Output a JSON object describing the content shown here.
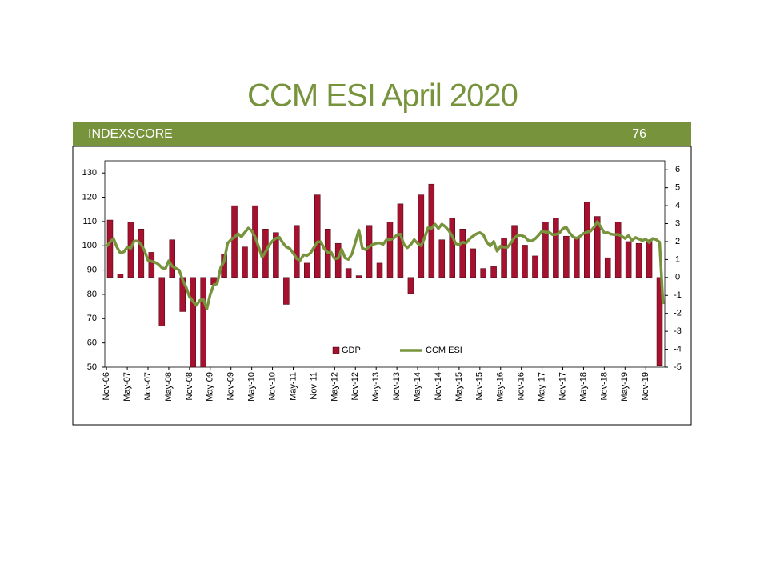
{
  "title": "CCM ESI April 2020",
  "banner": {
    "label": "INDEXSCORE",
    "score": 76
  },
  "chart_data": {
    "type": "combo",
    "categories": [
      "Nov-06",
      null,
      null,
      null,
      null,
      null,
      "May-07",
      null,
      null,
      null,
      null,
      null,
      "Nov-07",
      null,
      null,
      null,
      null,
      null,
      "May-08",
      null,
      null,
      null,
      null,
      null,
      "Nov-08",
      null,
      null,
      null,
      null,
      null,
      "May-09",
      null,
      null,
      null,
      null,
      null,
      "Nov-09",
      null,
      null,
      null,
      null,
      null,
      "May-10",
      null,
      null,
      null,
      null,
      null,
      "Nov-10",
      null,
      null,
      null,
      null,
      null,
      "May-11",
      null,
      null,
      null,
      null,
      null,
      "Nov-11",
      null,
      null,
      null,
      null,
      null,
      "May-12",
      null,
      null,
      null,
      null,
      null,
      "Nov-12",
      null,
      null,
      null,
      null,
      null,
      "May-13",
      null,
      null,
      null,
      null,
      null,
      "Nov-13",
      null,
      null,
      null,
      null,
      null,
      "May-14",
      null,
      null,
      null,
      null,
      null,
      "Nov-14",
      null,
      null,
      null,
      null,
      null,
      "May-15",
      null,
      null,
      null,
      null,
      null,
      "Nov-15",
      null,
      null,
      null,
      null,
      null,
      "May-16",
      null,
      null,
      null,
      null,
      null,
      "Nov-16",
      null,
      null,
      null,
      null,
      null,
      "May-17",
      null,
      null,
      null,
      null,
      null,
      "Nov-17",
      null,
      null,
      null,
      null,
      null,
      "May-18",
      null,
      null,
      null,
      null,
      null,
      "Nov-18",
      null,
      null,
      null,
      null,
      null,
      "May-19",
      null,
      null,
      null,
      null,
      null,
      "Nov-19",
      null,
      null,
      null,
      null,
      null
    ],
    "series": [
      {
        "name": "GDP",
        "type": "bar",
        "axis": "y2",
        "color": "#a5112e",
        "values": [
          null,
          3.2,
          null,
          null,
          0.2,
          null,
          null,
          3.1,
          null,
          null,
          2.7,
          null,
          null,
          1.4,
          null,
          null,
          -2.7,
          null,
          null,
          2.1,
          null,
          null,
          -1.9,
          null,
          null,
          -5,
          null,
          null,
          -5,
          null,
          null,
          -0.4,
          null,
          null,
          1.3,
          null,
          null,
          4.0,
          null,
          null,
          1.7,
          null,
          null,
          4.0,
          null,
          null,
          2.7,
          null,
          null,
          2.5,
          null,
          null,
          -1.5,
          null,
          null,
          2.9,
          null,
          null,
          0.8,
          null,
          null,
          4.6,
          null,
          null,
          2.7,
          null,
          null,
          1.9,
          null,
          null,
          0.5,
          null,
          null,
          0.1,
          null,
          null,
          2.9,
          null,
          null,
          0.8,
          null,
          null,
          3.1,
          null,
          null,
          4.1,
          null,
          null,
          -0.9,
          null,
          null,
          4.6,
          null,
          null,
          5.2,
          null,
          null,
          2.1,
          null,
          null,
          3.3,
          null,
          null,
          2.7,
          null,
          null,
          1.6,
          null,
          null,
          0.5,
          null,
          null,
          0.6,
          null,
          null,
          2.2,
          null,
          null,
          2.9,
          null,
          null,
          1.8,
          null,
          null,
          1.2,
          null,
          null,
          3.1,
          null,
          null,
          3.3,
          null,
          null,
          2.3,
          null,
          null,
          2.2,
          null,
          null,
          4.2,
          null,
          null,
          3.4,
          null,
          null,
          1.1,
          null,
          null,
          3.1,
          null,
          null,
          2.0,
          null,
          null,
          1.9,
          null,
          null,
          2.1,
          null,
          null,
          -4.9,
          null
        ]
      },
      {
        "name": "CCM ESI",
        "type": "line",
        "axis": "y",
        "color": "#77933c",
        "values": [
          99.7,
          101.5,
          103,
          99.5,
          97,
          97.5,
          99.5,
          99,
          102,
          102,
          100.5,
          98,
          94,
          93.6,
          93.2,
          92.4,
          91,
          90.5,
          93.8,
          91.5,
          90.8,
          90,
          86,
          83,
          79,
          77,
          75.5,
          77.5,
          78,
          74,
          80,
          83.9,
          84.4,
          91,
          93.5,
          101,
          102.5,
          103.5,
          105,
          103.7,
          105.5,
          107.3,
          106.2,
          103.5,
          99.5,
          95.3,
          97.5,
          100.2,
          102,
          103.1,
          103.5,
          101.2,
          99.5,
          98.9,
          97,
          94.7,
          94,
          96.3,
          96,
          97,
          99.3,
          101.6,
          101.6,
          98.8,
          97.2,
          97.3,
          94.6,
          94.9,
          98.6,
          95,
          94.4,
          96.7,
          101.6,
          106.5,
          99,
          98.4,
          99.7,
          100.5,
          101,
          101.2,
          100.6,
          102.5,
          102.5,
          103,
          104.5,
          104.8,
          100.6,
          99.2,
          100.5,
          102.5,
          101,
          100,
          103.2,
          107.4,
          107.2,
          108.9,
          107.1,
          108.9,
          107.9,
          106.3,
          104,
          100.9,
          100.4,
          101.5,
          101.1,
          102.8,
          104,
          104.9,
          105.4,
          104.6,
          101.5,
          99.9,
          101.8,
          97.8,
          99.9,
          99.4,
          99.4,
          101.2,
          103.3,
          104.3,
          104.3,
          103.7,
          102.2,
          102,
          102.9,
          104.4,
          106.1,
          105.6,
          105.6,
          104.6,
          104.7,
          105.2,
          107.1,
          107.6,
          105.3,
          103.6,
          103.1,
          103.9,
          105.1,
          105.6,
          106,
          107.6,
          110,
          107.7,
          105.3,
          105.4,
          104.8,
          104.6,
          104.7,
          104,
          103,
          104.2,
          102.2,
          103.4,
          102.8,
          102.2,
          102.7,
          101.3,
          103,
          102.5,
          101.5,
          76
        ]
      }
    ],
    "ylim": [
      50,
      135
    ],
    "yticks": [
      50,
      60,
      70,
      80,
      90,
      100,
      110,
      120,
      130
    ],
    "y2lim": [
      -5,
      6.5
    ],
    "y2ticks": [
      -5,
      -4,
      -3,
      -2,
      -1,
      0,
      1,
      2,
      3,
      4,
      5,
      6
    ],
    "legend": "lower center",
    "grid": false
  }
}
